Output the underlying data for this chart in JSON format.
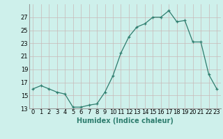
{
  "x": [
    0,
    1,
    2,
    3,
    4,
    5,
    6,
    7,
    8,
    9,
    10,
    11,
    12,
    13,
    14,
    15,
    16,
    17,
    18,
    19,
    20,
    21,
    22,
    23
  ],
  "y": [
    16.0,
    16.5,
    16.0,
    15.5,
    15.2,
    13.2,
    13.2,
    13.5,
    13.7,
    15.5,
    18.0,
    21.5,
    24.0,
    25.5,
    26.0,
    27.0,
    27.0,
    28.0,
    26.3,
    26.5,
    23.2,
    23.2,
    18.2,
    16.0
  ],
  "xlabel": "Humidex (Indice chaleur)",
  "ylabel": "",
  "ylim": [
    13,
    29
  ],
  "xlim": [
    -0.5,
    23.5
  ],
  "yticks": [
    13,
    15,
    17,
    19,
    21,
    23,
    25,
    27
  ],
  "xtick_labels": [
    "0",
    "1",
    "2",
    "3",
    "4",
    "5",
    "6",
    "7",
    "8",
    "9",
    "10",
    "11",
    "12",
    "13",
    "14",
    "15",
    "16",
    "17",
    "18",
    "19",
    "20",
    "21",
    "22",
    "23"
  ],
  "line_color": "#2e7d6e",
  "marker": "+",
  "bg_color": "#cef0eb",
  "grid_color": "#c8b8b8",
  "label_fontsize": 7,
  "tick_fontsize": 6
}
